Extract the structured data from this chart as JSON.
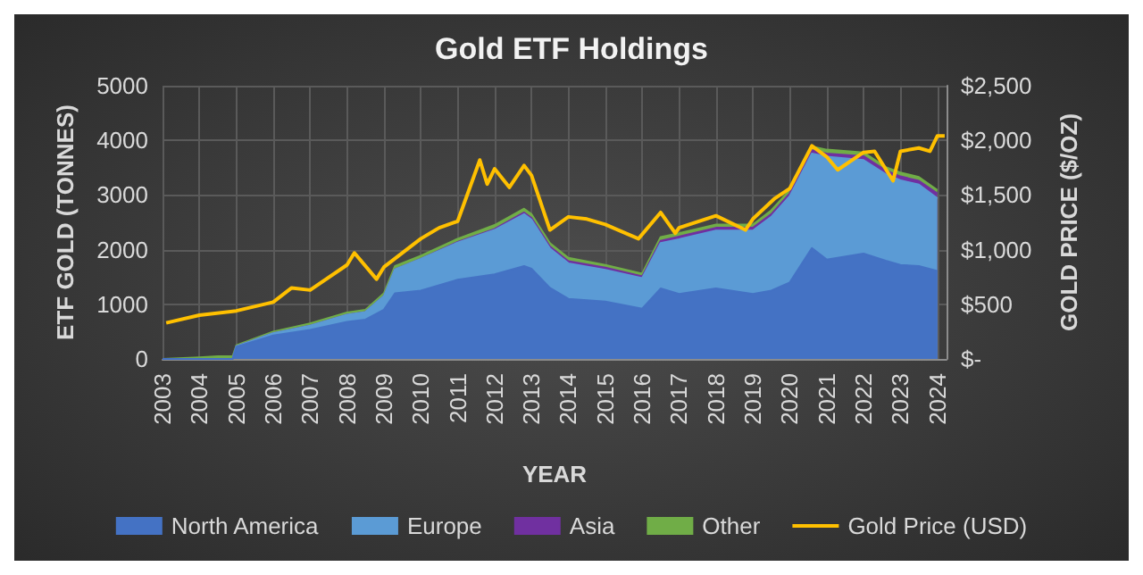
{
  "chart_data": {
    "type": "area",
    "stacked": true,
    "title": "Gold ETF Holdings",
    "xlabel": "YEAR",
    "ylabel": "ETF GOLD (TONNES)",
    "y2label": "GOLD PRICE ($/OZ)",
    "x": [
      2003,
      2004,
      2004.5,
      2004.9,
      2005,
      2006,
      2007,
      2008,
      2008.5,
      2009,
      2009.3,
      2010,
      2011,
      2012,
      2012.8,
      2013,
      2013.5,
      2014,
      2015,
      2016,
      2016.5,
      2017,
      2018,
      2019,
      2019.5,
      2020,
      2020.6,
      2021,
      2022,
      2022.6,
      2023,
      2023.5,
      2024
    ],
    "series": [
      {
        "name": "North America",
        "color": "#4472c4",
        "values": [
          0,
          0,
          0,
          0,
          220,
          430,
          530,
          680,
          720,
          900,
          1200,
          1250,
          1450,
          1550,
          1700,
          1650,
          1300,
          1100,
          1050,
          920,
          1290,
          1190,
          1290,
          1190,
          1250,
          1400,
          2030,
          1820,
          1930,
          1800,
          1720,
          1700,
          1610
        ]
      },
      {
        "name": "Europe",
        "color": "#5b9bd5",
        "values": [
          0,
          0,
          0,
          0,
          10,
          40,
          80,
          130,
          140,
          250,
          440,
          580,
          680,
          810,
          950,
          900,
          720,
          650,
          580,
          560,
          830,
          1000,
          1060,
          1160,
          1350,
          1580,
          1730,
          1880,
          1710,
          1580,
          1550,
          1490,
          1330
        ]
      },
      {
        "name": "Asia",
        "color": "#7030a0",
        "values": [
          0,
          0,
          0,
          0,
          0,
          0,
          0,
          0,
          0,
          0,
          0,
          0,
          10,
          20,
          30,
          30,
          40,
          40,
          40,
          30,
          40,
          50,
          50,
          50,
          50,
          50,
          60,
          60,
          70,
          70,
          70,
          70,
          90
        ]
      },
      {
        "name": "Other",
        "color": "#70ad47",
        "values": [
          0,
          30,
          50,
          50,
          20,
          30,
          40,
          40,
          40,
          50,
          60,
          60,
          60,
          70,
          70,
          70,
          60,
          60,
          50,
          50,
          70,
          60,
          60,
          60,
          70,
          60,
          70,
          70,
          70,
          60,
          70,
          70,
          60
        ]
      },
      {
        "name": "Gold Price (USD)",
        "type": "line",
        "axis": "y2",
        "color": "#ffc000",
        "x": [
          2003.1,
          2004,
          2005,
          2006,
          2006.5,
          2007,
          2008,
          2008.2,
          2008.8,
          2009,
          2010,
          2010.5,
          2011,
          2011.6,
          2011.8,
          2012,
          2012.4,
          2012.8,
          2013,
          2013.5,
          2014,
          2014.5,
          2015,
          2015.9,
          2016.5,
          2016.9,
          2017,
          2018,
          2018.8,
          2019,
          2019.6,
          2020,
          2020.6,
          2021,
          2021.3,
          2022,
          2022.3,
          2022.8,
          2023,
          2023.5,
          2023.8,
          2024,
          2024.2
        ],
        "values": [
          330,
          400,
          440,
          520,
          650,
          630,
          860,
          970,
          730,
          840,
          1100,
          1200,
          1260,
          1820,
          1600,
          1740,
          1570,
          1770,
          1680,
          1180,
          1300,
          1280,
          1230,
          1100,
          1340,
          1150,
          1200,
          1310,
          1180,
          1280,
          1470,
          1560,
          1950,
          1850,
          1730,
          1890,
          1900,
          1630,
          1900,
          1930,
          1900,
          2040,
          2040
        ]
      }
    ],
    "xlim": [
      2003,
      2024.25
    ],
    "xticks": [
      2003,
      2004,
      2005,
      2006,
      2007,
      2008,
      2009,
      2010,
      2011,
      2012,
      2013,
      2014,
      2015,
      2016,
      2017,
      2018,
      2019,
      2020,
      2021,
      2022,
      2023,
      2024
    ],
    "ylim": [
      0,
      5000
    ],
    "yticks": [
      0,
      1000,
      2000,
      3000,
      4000,
      5000
    ],
    "y2lim": [
      0,
      2500
    ],
    "y2ticks": [
      {
        "value": 0,
        "label": "$-"
      },
      {
        "value": 500,
        "label": "$500"
      },
      {
        "value": 1000,
        "label": "$1,000"
      },
      {
        "value": 1500,
        "label": "$1,500"
      },
      {
        "value": 2000,
        "label": "$2,000"
      },
      {
        "value": 2500,
        "label": "$2,500"
      }
    ],
    "grid": true,
    "legend": "bottom"
  }
}
